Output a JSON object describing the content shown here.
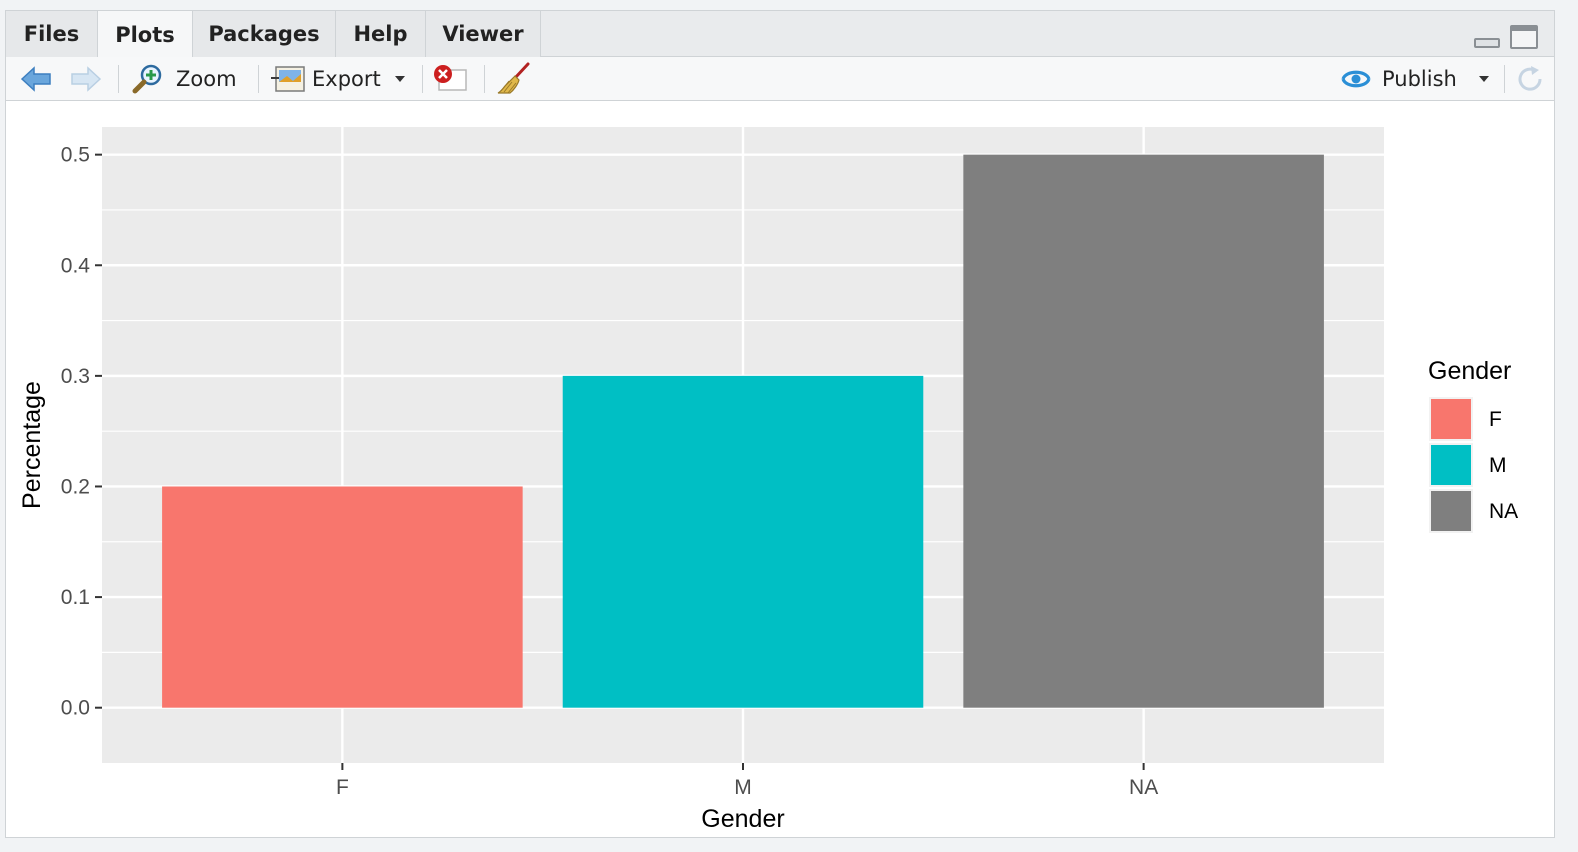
{
  "tabs": [
    {
      "label": "Files",
      "active": false
    },
    {
      "label": "Plots",
      "active": true
    },
    {
      "label": "Packages",
      "active": false
    },
    {
      "label": "Help",
      "active": false
    },
    {
      "label": "Viewer",
      "active": false
    }
  ],
  "toolbar": {
    "zoom_label": "Zoom",
    "export_label": "Export",
    "publish_label": "Publish"
  },
  "icons": {
    "back": "arrow-left-icon",
    "forward": "arrow-right-icon",
    "zoom": "magnifier-icon",
    "export": "export-image-icon",
    "remove": "remove-plot-icon",
    "clear": "broom-icon",
    "publish": "publish-icon",
    "refresh": "refresh-icon"
  },
  "chart_data": {
    "type": "bar",
    "categories": [
      "F",
      "M",
      "NA"
    ],
    "values": [
      0.2,
      0.3,
      0.5
    ],
    "colors": [
      "#F8766D",
      "#00BFC4",
      "#7F7F7F"
    ],
    "xlabel": "Gender",
    "ylabel": "Percentage",
    "ylim": [
      -0.05,
      0.525
    ],
    "yticks": [
      0.0,
      0.1,
      0.2,
      0.3,
      0.4,
      0.5
    ],
    "ytick_labels": [
      "0.0",
      "0.1",
      "0.2",
      "0.3",
      "0.4",
      "0.5"
    ],
    "grid": true,
    "panel_background": "#EBEBEB",
    "legend": {
      "title": "Gender",
      "position": "right",
      "entries": [
        "F",
        "M",
        "NA"
      ]
    }
  }
}
